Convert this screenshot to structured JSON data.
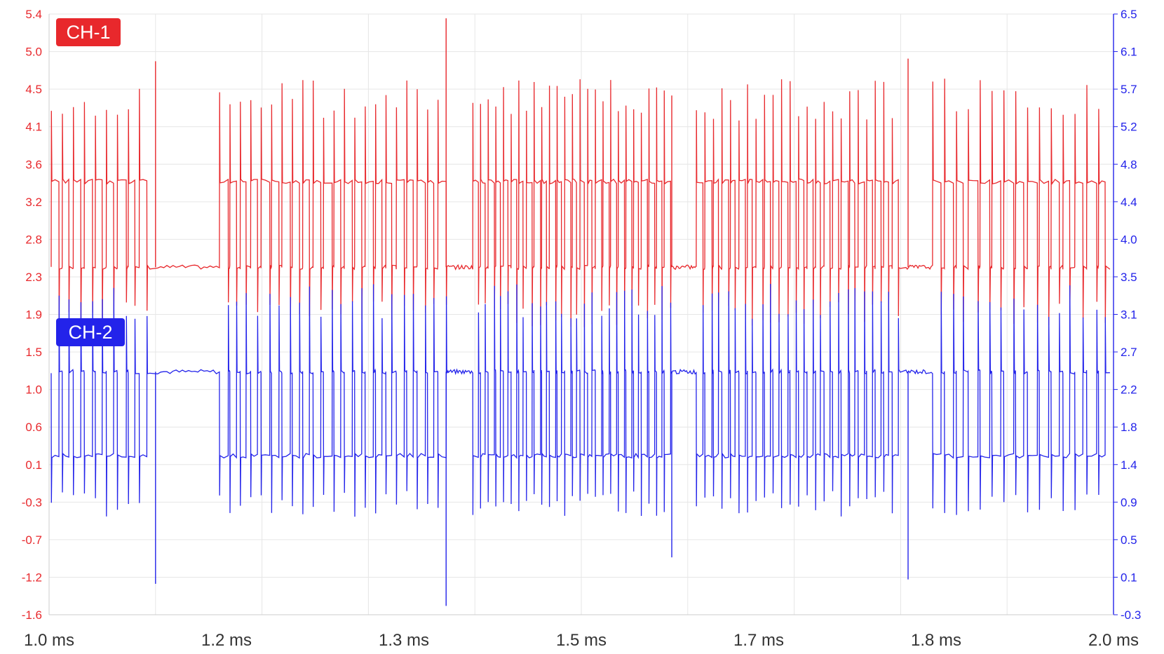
{
  "channels": [
    {
      "label": "CH-1",
      "color": "#e8282c"
    },
    {
      "label": "CH-2",
      "color": "#2323ea"
    }
  ],
  "left_axis": {
    "color": "#e8282c",
    "ticks": [
      "5.4",
      "5.0",
      "4.5",
      "4.1",
      "3.6",
      "3.2",
      "2.8",
      "2.3",
      "1.9",
      "1.5",
      "1.0",
      "0.6",
      "0.1",
      "-0.3",
      "-0.7",
      "-1.2",
      "-1.6"
    ]
  },
  "right_axis": {
    "color": "#2323ea",
    "ticks": [
      "6.5",
      "6.1",
      "5.7",
      "5.2",
      "4.8",
      "4.4",
      "4.0",
      "3.5",
      "3.1",
      "2.7",
      "2.2",
      "1.8",
      "1.4",
      "0.9",
      "0.5",
      "0.1",
      "-0.3"
    ]
  },
  "x_axis": {
    "ticks": [
      "1.0 ms",
      "1.2 ms",
      "1.3 ms",
      "1.5 ms",
      "1.7 ms",
      "1.8 ms",
      "2.0 ms"
    ]
  },
  "chart_data": {
    "type": "line",
    "x_range_ms": [
      1.0,
      2.0
    ],
    "grid": true,
    "left_ylim": [
      -1.6,
      5.4
    ],
    "right_ylim": [
      -0.3,
      6.5
    ],
    "series": [
      {
        "name": "CH-1",
        "axis": "left",
        "low_level": 2.45,
        "high_level": 3.45,
        "idle_level": 2.45,
        "segments": [
          {
            "start": 1.002,
            "end": 1.095,
            "pulses": 9,
            "idle_after": false
          },
          {
            "start": 1.102,
            "end": 1.16,
            "pulses": 0,
            "idle_after": true
          },
          {
            "start": 1.16,
            "end": 1.375,
            "pulses": 22,
            "idle_after": false
          },
          {
            "start": 1.375,
            "end": 1.398,
            "pulses": 0,
            "idle_after": true
          },
          {
            "start": 1.398,
            "end": 1.585,
            "pulses": 26,
            "idle_after": false
          },
          {
            "start": 1.585,
            "end": 1.608,
            "pulses": 0,
            "idle_after": true
          },
          {
            "start": 1.608,
            "end": 1.8,
            "pulses": 24,
            "idle_after": false
          },
          {
            "start": 1.805,
            "end": 1.83,
            "pulses": 0,
            "idle_after": true
          },
          {
            "start": 1.83,
            "end": 1.997,
            "pulses": 15,
            "idle_after": false
          }
        ],
        "spikes": [
          {
            "x": 1.1,
            "y": 4.85
          },
          {
            "x": 1.373,
            "y": 5.35
          },
          {
            "x": 1.585,
            "y": 4.45
          },
          {
            "x": 1.807,
            "y": 4.88
          }
        ]
      },
      {
        "name": "CH-2",
        "axis": "right",
        "low_level": 1.5,
        "high_level": 2.45,
        "idle_level": 2.45,
        "spikes": [
          {
            "x": 1.1,
            "y": 0.05
          },
          {
            "x": 1.373,
            "y": -0.2
          },
          {
            "x": 1.585,
            "y": 0.35
          },
          {
            "x": 1.807,
            "y": 0.1
          }
        ]
      }
    ]
  }
}
